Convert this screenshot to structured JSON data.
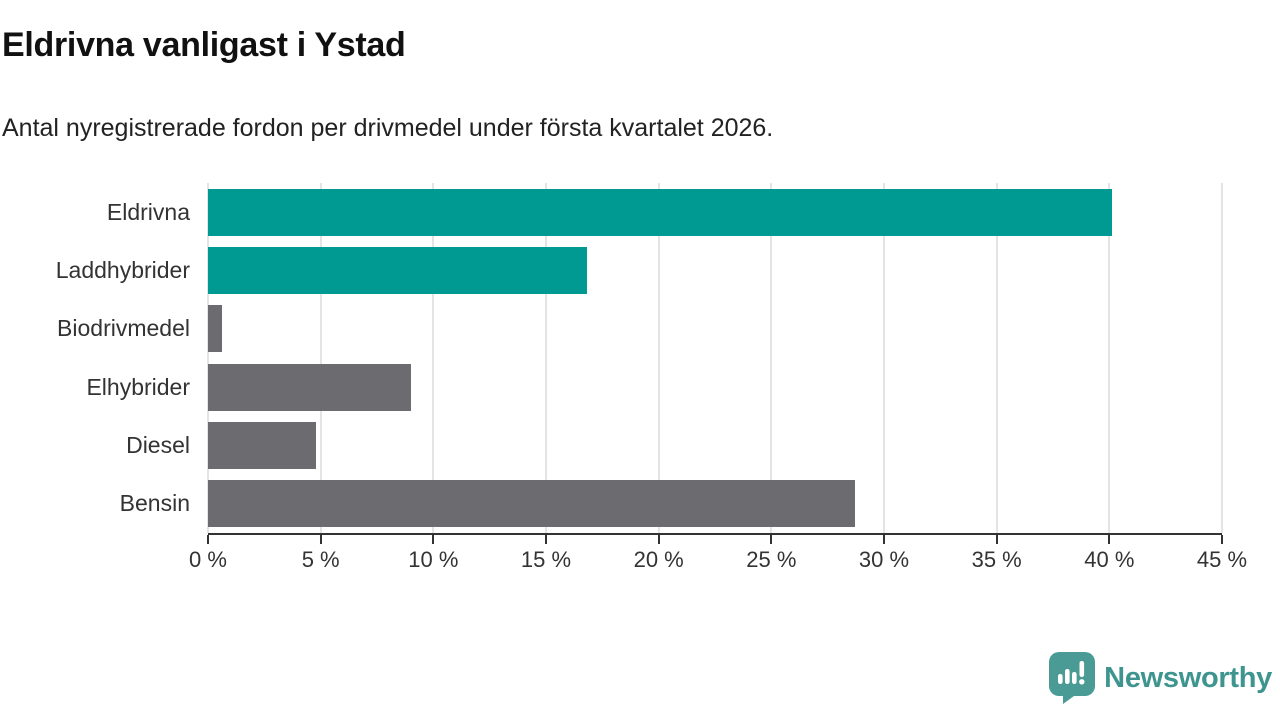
{
  "header": {
    "title": "Eldrivna vanligast i Ystad",
    "subtitle": "Antal nyregistrerade fordon per drivmedel under första kvartalet 2026."
  },
  "chart_data": {
    "type": "bar",
    "orientation": "horizontal",
    "title": "Eldrivna vanligast i Ystad",
    "xlabel": "",
    "ylabel": "",
    "unit": "%",
    "categories": [
      "Eldrivna",
      "Laddhybrider",
      "Biodrivmedel",
      "Elhybrider",
      "Diesel",
      "Bensin"
    ],
    "values": [
      40.1,
      16.8,
      0.6,
      9.0,
      4.8,
      28.7
    ],
    "bar_colors": [
      "#009a93",
      "#009a93",
      "#6b6b70",
      "#6b6b70",
      "#6b6b70",
      "#6b6b70"
    ],
    "xlim": [
      0,
      45
    ],
    "x_ticks": [
      0,
      5,
      10,
      15,
      20,
      25,
      30,
      35,
      40,
      45
    ],
    "x_tick_labels": [
      "0 %",
      "5 %",
      "10 %",
      "15 %",
      "20 %",
      "25 %",
      "30 %",
      "35 %",
      "40 %",
      "45 %"
    ],
    "grid": "vertical-only",
    "legend": "none"
  },
  "footer": {
    "brand": "Newsworthy"
  },
  "colors": {
    "accent_teal": "#009a93",
    "neutral_gray": "#6b6b70",
    "grid_gray": "#e4e4e4",
    "axis_dark": "#333333",
    "logo_teal": "#4a9b95",
    "logo_text_teal": "#3e948e"
  }
}
